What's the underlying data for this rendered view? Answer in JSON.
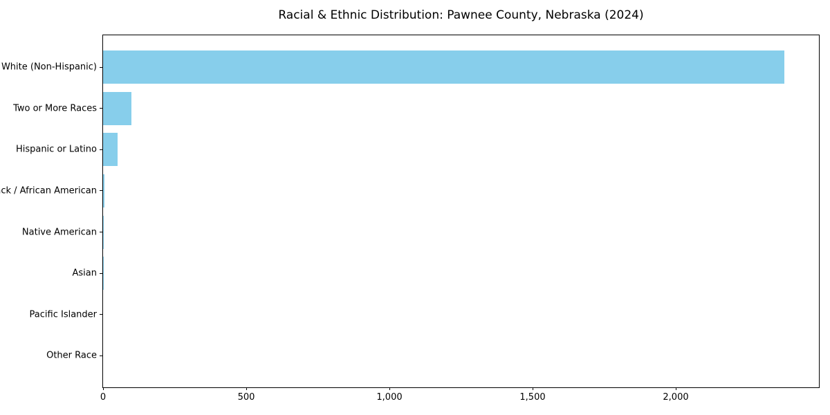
{
  "title": "Racial & Ethnic Distribution: Pawnee County, Nebraska (2024)",
  "chart_data": {
    "type": "bar",
    "orientation": "horizontal",
    "title": "Racial & Ethnic Distribution: Pawnee County, Nebraska (2024)",
    "categories": [
      "White (Non-Hispanic)",
      "Two or More Races",
      "Hispanic or Latino",
      "Black / African American",
      "Native American",
      "Asian",
      "Pacific Islander",
      "Other Race"
    ],
    "values": [
      2380,
      100,
      50,
      5,
      3,
      2,
      0,
      0
    ],
    "xlabel": "",
    "ylabel": "",
    "xlim": [
      0,
      2500
    ],
    "x_ticks": [
      0,
      500,
      1000,
      1500,
      2000
    ],
    "x_tick_labels": [
      "0",
      "500",
      "1,000",
      "1,500",
      "2,000"
    ],
    "bar_color": "#87CEEB",
    "background_color": "#ffffff",
    "axis_color": "#000000",
    "grid": false,
    "legend": "none"
  }
}
